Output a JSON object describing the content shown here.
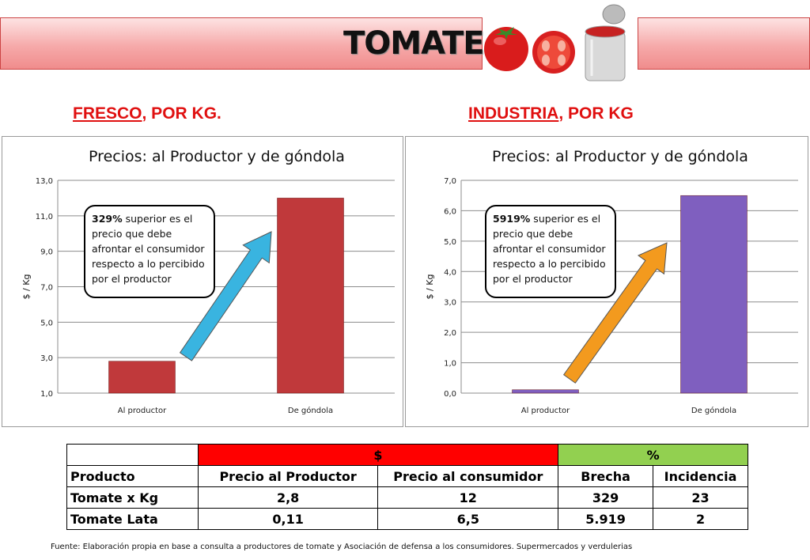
{
  "header": {
    "title": "TOMATE"
  },
  "sections": {
    "left": {
      "heading_underlined": "FRESCO",
      "heading_rest": ", POR KG."
    },
    "right": {
      "heading_underlined": "INDUSTRIA",
      "heading_rest": ", POR KG"
    }
  },
  "chart_data": [
    {
      "type": "bar",
      "title": "Precios: al Productor y de góndola",
      "ylabel": "$ / Kg",
      "xlabel": "",
      "categories": [
        "Al productor",
        "De góndola"
      ],
      "values": [
        2.8,
        12
      ],
      "ylim": [
        1.0,
        13.0
      ],
      "yticks": [
        "1,0",
        "3,0",
        "5,0",
        "7,0",
        "9,0",
        "11,0",
        "13,0"
      ],
      "ytick_values": [
        1,
        3,
        5,
        7,
        9,
        11,
        13
      ],
      "bar_color": "#c0393b",
      "arrow_color": "#39b4e0",
      "grid": true,
      "annotation": {
        "bold": "329%",
        "text": " superior es el precio que debe afrontar el consumidor respecto a lo percibido por el productor"
      }
    },
    {
      "type": "bar",
      "title": "Precios: al Productor y de góndola",
      "ylabel": "$ / Kg",
      "xlabel": "",
      "categories": [
        "Al productor",
        "De góndola"
      ],
      "values": [
        0.11,
        6.5
      ],
      "ylim": [
        0.0,
        7.0
      ],
      "yticks": [
        "0,0",
        "1,0",
        "2,0",
        "3,0",
        "4,0",
        "5,0",
        "6,0",
        "7,0"
      ],
      "ytick_values": [
        0,
        1,
        2,
        3,
        4,
        5,
        6,
        7
      ],
      "bar_color": "#7f5fbf",
      "arrow_color": "#f39a1e",
      "grid": true,
      "annotation": {
        "bold": "5919%",
        "text": " superior es el precio que debe afrontar el consumidor respecto a lo percibido por el productor"
      }
    }
  ],
  "table": {
    "group_money": "$",
    "group_pct": "%",
    "headers": [
      "Producto",
      "Precio al Productor",
      "Precio al consumidor",
      "Brecha",
      "Incidencia"
    ],
    "rows": [
      [
        "Tomate x Kg",
        "2,8",
        "12",
        "329",
        "23"
      ],
      [
        "Tomate Lata",
        "0,11",
        "6,5",
        "5.919",
        "2"
      ]
    ]
  },
  "source": "Fuente: Elaboración propia en base a consulta a productores de tomate  y Asociación de defensa a los consumidores. Supermercados y verdulerias",
  "icons": [
    "tomato-icon",
    "tomato-slice-icon",
    "tin-can-icon"
  ]
}
